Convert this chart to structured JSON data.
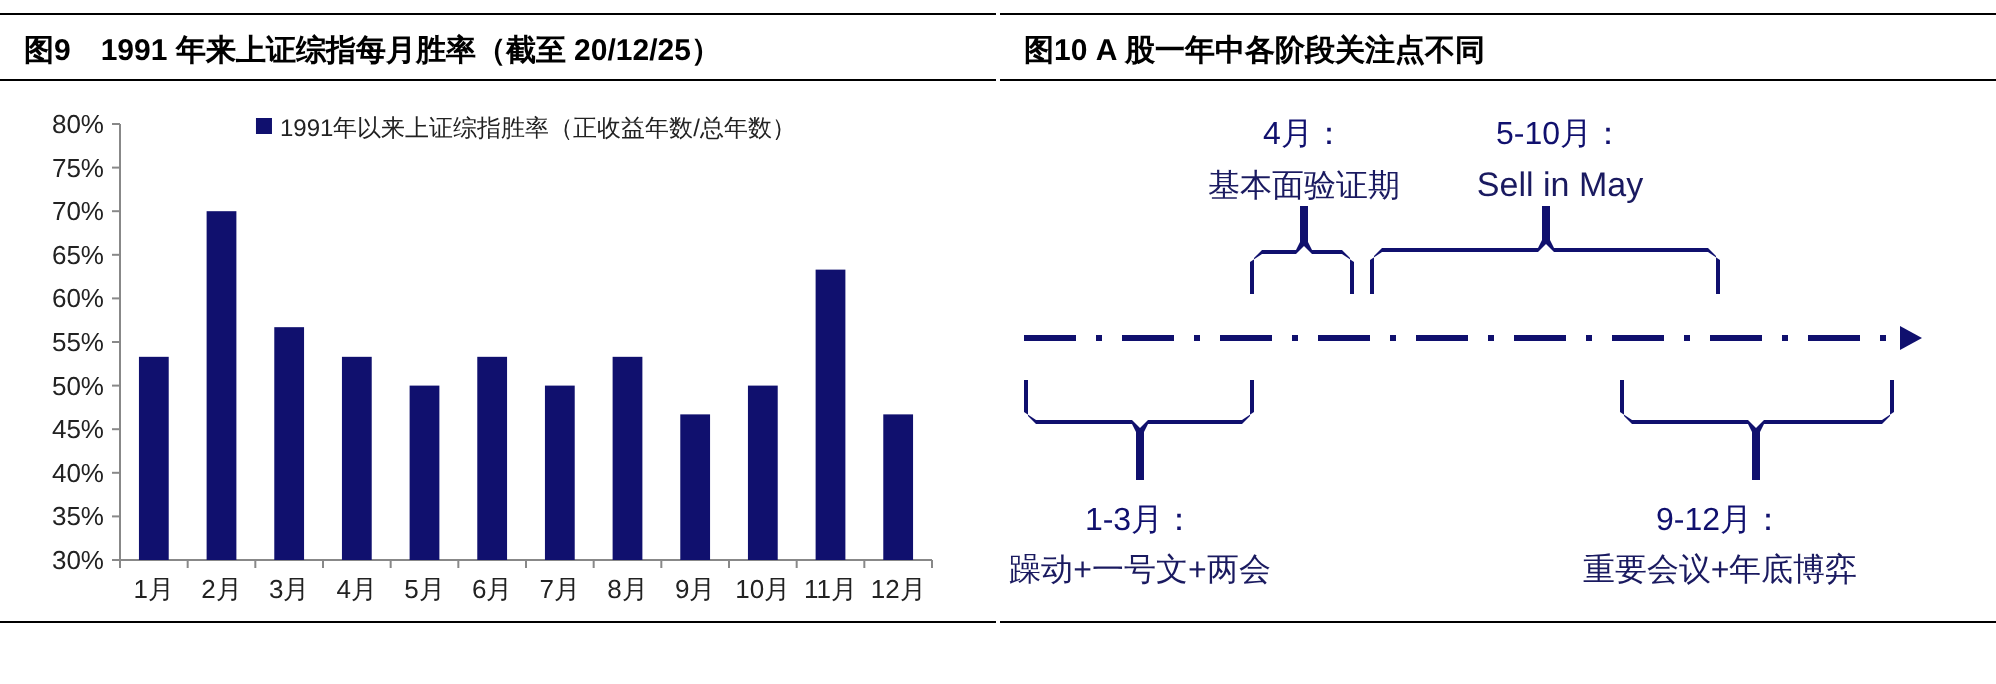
{
  "chart_data": [
    {
      "type": "bar",
      "title": "图9　1991 年来上证综指每月胜率（截至 20/12/25）",
      "categories": [
        "1月",
        "2月",
        "3月",
        "4月",
        "5月",
        "6月",
        "7月",
        "8月",
        "9月",
        "10月",
        "11月",
        "12月"
      ],
      "series": [
        {
          "name": "1991年以来上证综指胜率（正收益年数/总年数）",
          "color": "#10106e",
          "values": [
            53.3,
            70.0,
            56.7,
            53.3,
            50.0,
            53.3,
            50.0,
            53.3,
            46.7,
            50.0,
            63.3,
            46.7
          ]
        }
      ],
      "ylim": [
        30,
        80
      ],
      "yticks": [
        {
          "value": 30,
          "label": "30%"
        },
        {
          "value": 35,
          "label": "35%"
        },
        {
          "value": 40,
          "label": "40%"
        },
        {
          "value": 45,
          "label": "45%"
        },
        {
          "value": 50,
          "label": "50%"
        },
        {
          "value": 55,
          "label": "55%"
        },
        {
          "value": 60,
          "label": "60%"
        },
        {
          "value": 65,
          "label": "65%"
        },
        {
          "value": 70,
          "label": "70%"
        },
        {
          "value": 75,
          "label": "75%"
        },
        {
          "value": 80,
          "label": "80%"
        }
      ],
      "legend": "top"
    },
    {
      "type": "other",
      "title": "图10 A 股一年中各阶段关注点不同",
      "annotations": [
        "4月：",
        "基本面验证期",
        "5-10月：",
        "Sell in May",
        "1-3月：",
        "躁动+一号文+两会",
        "9-12月：",
        "重要会议+年底博弈"
      ]
    }
  ]
}
